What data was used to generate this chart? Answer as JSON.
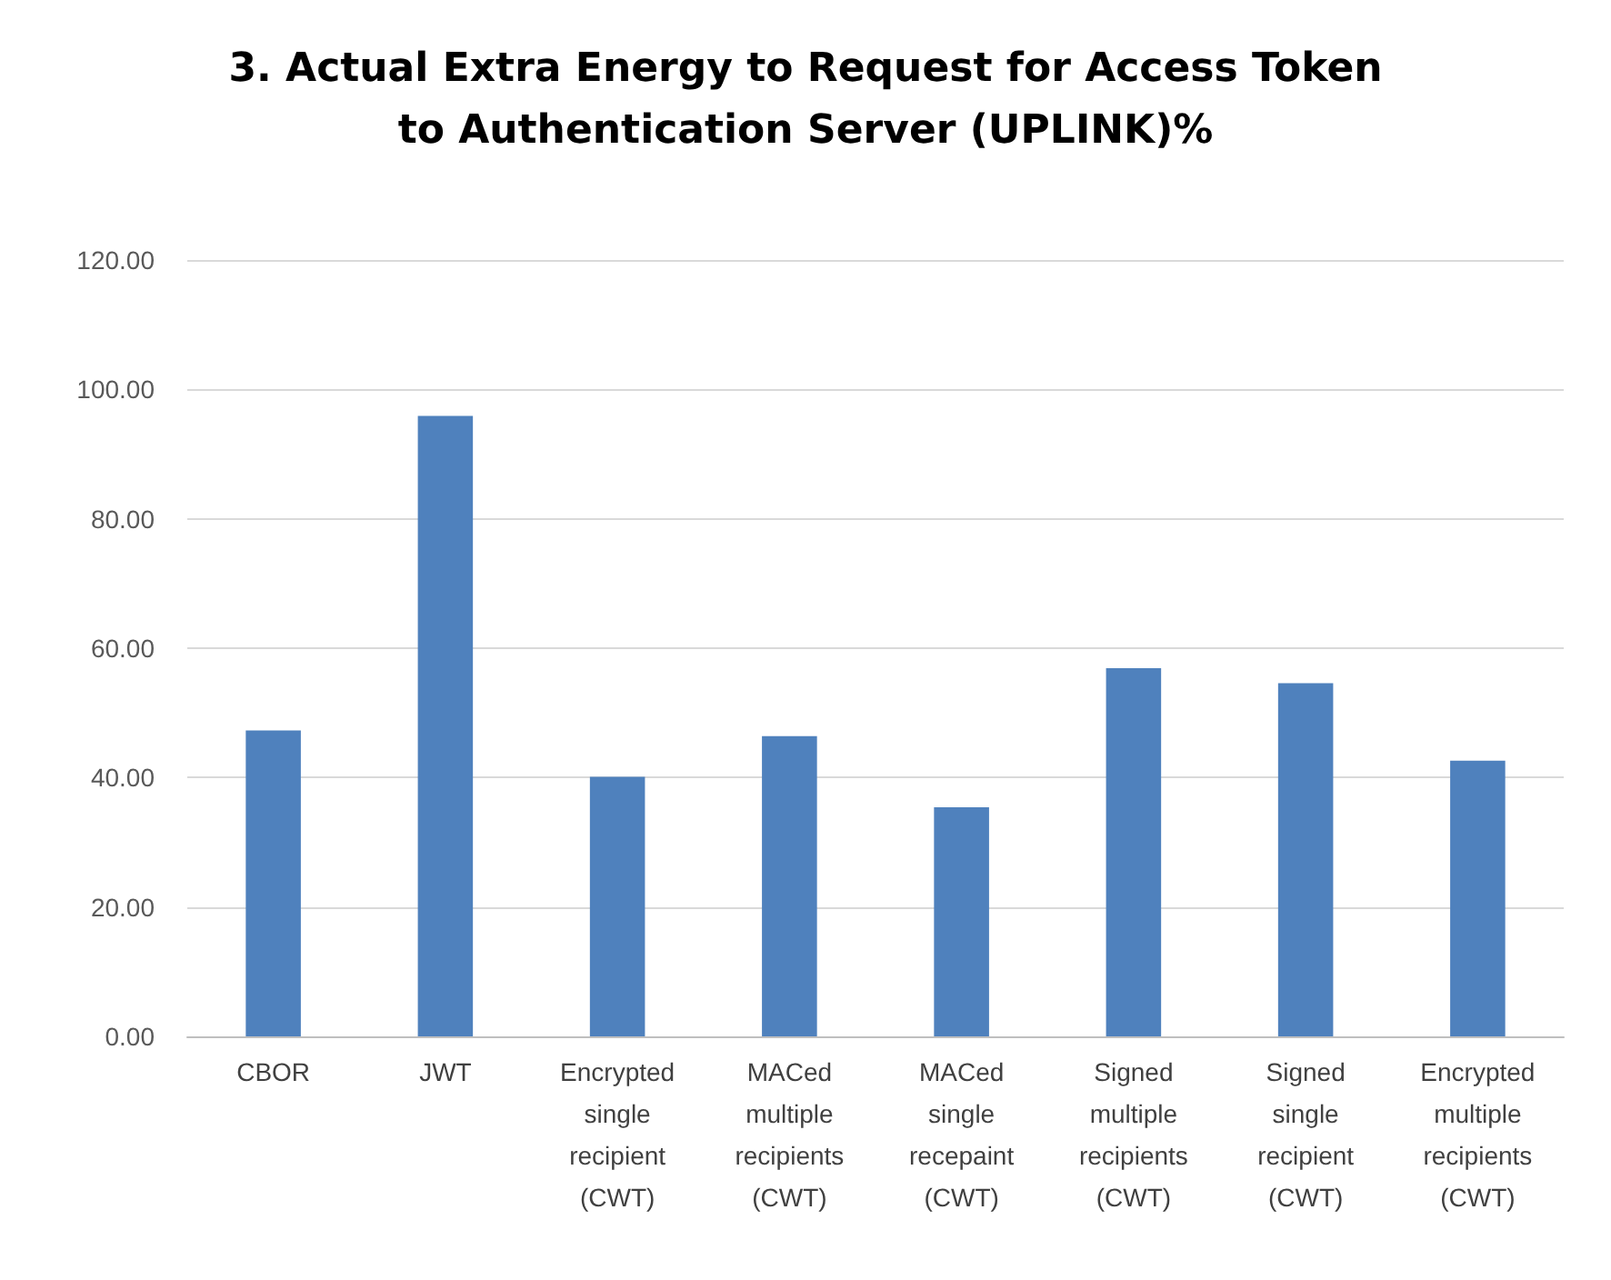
{
  "chart_data": {
    "type": "bar",
    "title": "3. Actual Extra Energy to Request for Access Token\nto Authentication Server (UPLINK)%",
    "categories": [
      "CBOR",
      "JWT",
      "Encrypted\nsingle\nrecipient\n(CWT)",
      "MACed\nmultiple\nrecipients\n(CWT)",
      "MACed\nsingle\nrecepaint\n(CWT)",
      "Signed\nmultiple\nrecipients\n(CWT)",
      "Signed\nsingle\nrecipient\n(CWT)",
      "Encrypted\nmultiple\nrecipients\n(CWT)"
    ],
    "values": [
      47.3,
      95.9,
      40.1,
      46.4,
      35.4,
      56.9,
      54.6,
      42.6
    ],
    "color": "#4f81bd",
    "ylim": [
      0,
      120
    ],
    "yticks": [
      {
        "value": 0,
        "label": "0.00"
      },
      {
        "value": 20,
        "label": "20.00"
      },
      {
        "value": 40,
        "label": "40.00"
      },
      {
        "value": 60,
        "label": "60.00"
      },
      {
        "value": 80,
        "label": "80.00"
      },
      {
        "value": 100,
        "label": "100.00"
      },
      {
        "value": 120,
        "label": "120.00"
      }
    ],
    "grid": "y"
  }
}
